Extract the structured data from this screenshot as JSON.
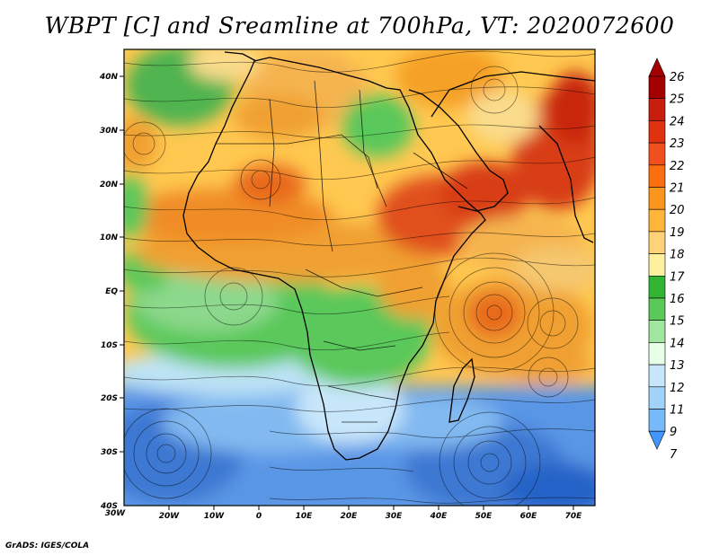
{
  "title": "WBPT [C] and Sreamline at 700hPa, VT: 2020072600",
  "credit": "GrADS: IGES/COLA",
  "lat_labels": [
    "40N",
    "30N",
    "20N",
    "10N",
    "EQ",
    "10S",
    "20S",
    "30S",
    "40S"
  ],
  "lon_labels": [
    "30W",
    "20W",
    "10W",
    "0",
    "10E",
    "20E",
    "30E",
    "40E",
    "50E",
    "60E",
    "70E"
  ],
  "colorbar": {
    "levels": [
      "26",
      "25",
      "24",
      "23",
      "22",
      "21",
      "20",
      "19",
      "18",
      "17",
      "16",
      "15",
      "14",
      "13",
      "12",
      "11",
      "9",
      "7"
    ],
    "colors": [
      "#a50000",
      "#c81e0f",
      "#e1320f",
      "#f0501e",
      "#fa6e0f",
      "#fa961e",
      "#ffb43c",
      "#ffd278",
      "#fff0a0",
      "#32b432",
      "#5ac85a",
      "#a0e6a0",
      "#e6ffe6",
      "#c8e6fa",
      "#a0d2fa",
      "#78b9fa",
      "#4196ff",
      "#1464d2"
    ]
  },
  "map": {
    "region": "Africa, Atlantic and Indian Ocean",
    "lon_range": [
      -30,
      75
    ],
    "lat_range": [
      -40,
      45
    ],
    "variable": "WBPT [C]",
    "level": "700hPa"
  }
}
